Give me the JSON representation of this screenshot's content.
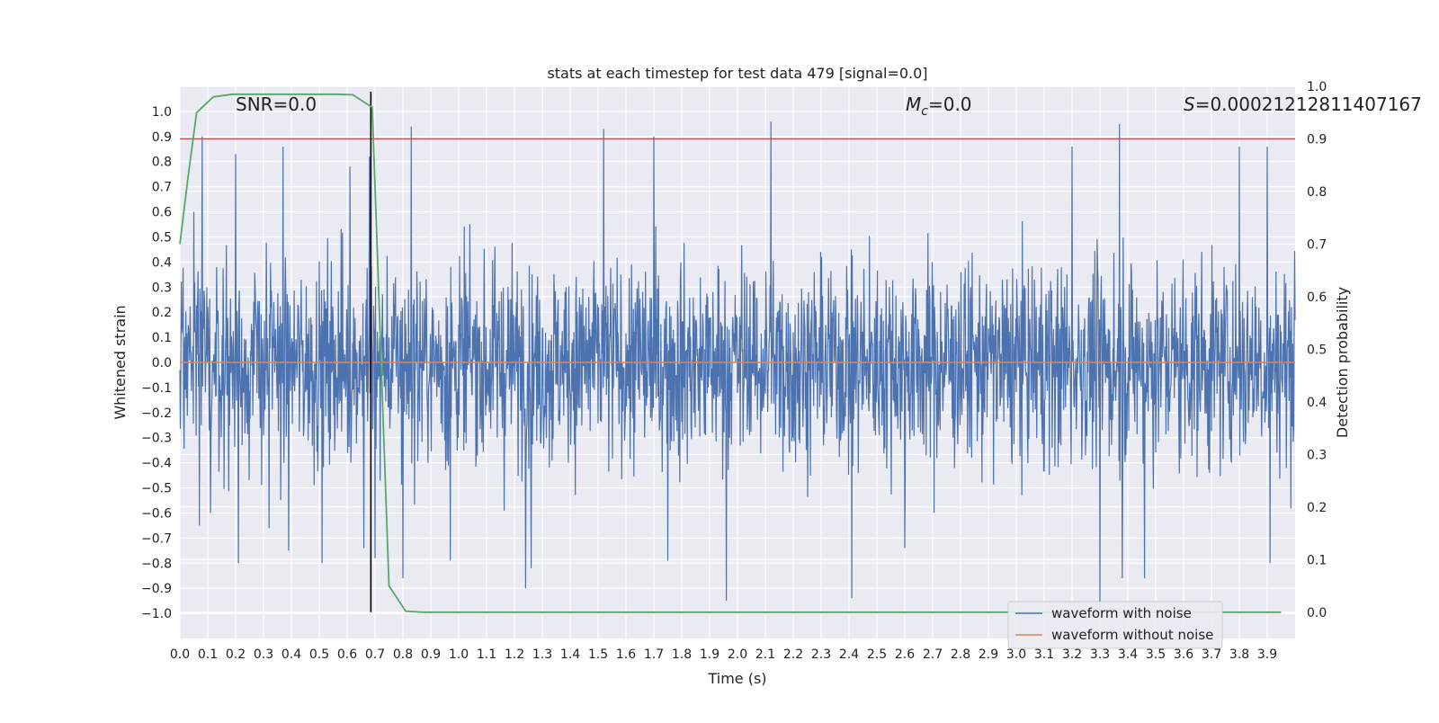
{
  "chart_data": {
    "type": "line",
    "title": "stats at each timestep for test data 479 [signal=0.0]",
    "xlabel": "Time (s)",
    "ylabel_left": "Whitened strain",
    "ylabel_right": "Detection probability",
    "xlim": [
      0.0,
      4.0
    ],
    "ylim_left": [
      -1.1,
      1.1
    ],
    "ylim_right": [
      -0.05,
      1.0
    ],
    "x_ticks": [
      "0.0",
      "0.1",
      "0.2",
      "0.3",
      "0.4",
      "0.5",
      "0.6",
      "0.7",
      "0.8",
      "0.9",
      "1.0",
      "1.1",
      "1.2",
      "1.3",
      "1.4",
      "1.5",
      "1.6",
      "1.7",
      "1.8",
      "1.9",
      "2.0",
      "2.1",
      "2.2",
      "2.3",
      "2.4",
      "2.5",
      "2.6",
      "2.7",
      "2.8",
      "2.9",
      "3.0",
      "3.1",
      "3.2",
      "3.3",
      "3.4",
      "3.5",
      "3.6",
      "3.7",
      "3.8",
      "3.9"
    ],
    "y_ticks_left": [
      "1.0",
      "0.9",
      "0.8",
      "0.7",
      "0.6",
      "0.5",
      "0.4",
      "0.3",
      "0.2",
      "0.1",
      "0.0",
      "−0.1",
      "−0.2",
      "−0.3",
      "−0.4",
      "−0.5",
      "−0.6",
      "−0.7",
      "−0.8",
      "−0.9",
      "−1.0"
    ],
    "y_ticks_right": [
      "1.0",
      "0.9",
      "0.8",
      "0.7",
      "0.6",
      "0.5",
      "0.4",
      "0.3",
      "0.2",
      "0.1",
      "0.0"
    ],
    "grid": true,
    "legend_placement": "lower-right",
    "annotations": {
      "snr": "SNR=0.0",
      "mc_symbol": "M",
      "mc_sub": "c",
      "mc_value": "=0.0",
      "s_symbol": "S",
      "s_value": "=0.00021212811407167"
    },
    "series": [
      {
        "name": "waveform with noise",
        "color": "#4c72b0",
        "axis": "left",
        "x_range": [
          0.0,
          4.0
        ],
        "amplitude_std": 0.2,
        "peaks": [
          {
            "x": 0.05,
            "y": 0.6
          },
          {
            "x": 0.07,
            "y": -0.65
          },
          {
            "x": 0.08,
            "y": 0.9
          },
          {
            "x": 0.11,
            "y": -0.6
          },
          {
            "x": 0.2,
            "y": 0.83
          },
          {
            "x": 0.21,
            "y": -0.8
          },
          {
            "x": 0.32,
            "y": -0.66
          },
          {
            "x": 0.37,
            "y": 0.86
          },
          {
            "x": 0.39,
            "y": -0.75
          },
          {
            "x": 0.51,
            "y": -0.8
          },
          {
            "x": 0.61,
            "y": 0.78
          },
          {
            "x": 0.66,
            "y": -0.74
          },
          {
            "x": 0.68,
            "y": 0.82
          },
          {
            "x": 0.7,
            "y": -0.78
          },
          {
            "x": 0.8,
            "y": -0.86
          },
          {
            "x": 0.83,
            "y": 0.94
          },
          {
            "x": 0.97,
            "y": -0.79
          },
          {
            "x": 1.24,
            "y": -0.9
          },
          {
            "x": 1.26,
            "y": -0.82
          },
          {
            "x": 1.52,
            "y": 0.93
          },
          {
            "x": 1.7,
            "y": 0.9
          },
          {
            "x": 1.75,
            "y": -0.79
          },
          {
            "x": 1.96,
            "y": -0.95
          },
          {
            "x": 2.12,
            "y": 0.96
          },
          {
            "x": 2.41,
            "y": -0.94
          },
          {
            "x": 2.6,
            "y": -0.74
          },
          {
            "x": 3.2,
            "y": 0.86
          },
          {
            "x": 3.3,
            "y": -1.0
          },
          {
            "x": 3.37,
            "y": 0.95
          },
          {
            "x": 3.38,
            "y": -0.86
          },
          {
            "x": 3.46,
            "y": -0.86
          },
          {
            "x": 3.8,
            "y": 0.86
          },
          {
            "x": 3.9,
            "y": 0.86
          },
          {
            "x": 3.91,
            "y": -0.8
          }
        ]
      },
      {
        "name": "waveform without noise",
        "color": "#dd8452",
        "axis": "left",
        "x": [
          0.0,
          4.0
        ],
        "y": [
          0.0,
          0.0
        ]
      },
      {
        "name": "",
        "color": "#55a868",
        "axis": "right",
        "x": [
          0.0,
          0.03,
          0.06,
          0.12,
          0.19,
          0.25,
          0.31,
          0.37,
          0.44,
          0.5,
          0.56,
          0.62,
          0.69,
          0.75,
          0.81,
          0.87,
          1.0,
          1.5,
          2.0,
          2.5,
          3.0,
          3.5,
          3.95
        ],
        "y": [
          0.7,
          0.83,
          0.95,
          0.98,
          0.985,
          0.985,
          0.985,
          0.985,
          0.985,
          0.985,
          0.985,
          0.984,
          0.96,
          0.05,
          0.002,
          0.0,
          0.0,
          0.0,
          0.0,
          0.0,
          0.0,
          0.0,
          0.0
        ]
      }
    ],
    "threshold_line": {
      "color": "#c44e52",
      "axis": "right",
      "y": 0.9
    },
    "vertical_marker": {
      "color": "#000000",
      "x": 0.685,
      "y_range": [
        0.0,
        0.99
      ]
    }
  }
}
